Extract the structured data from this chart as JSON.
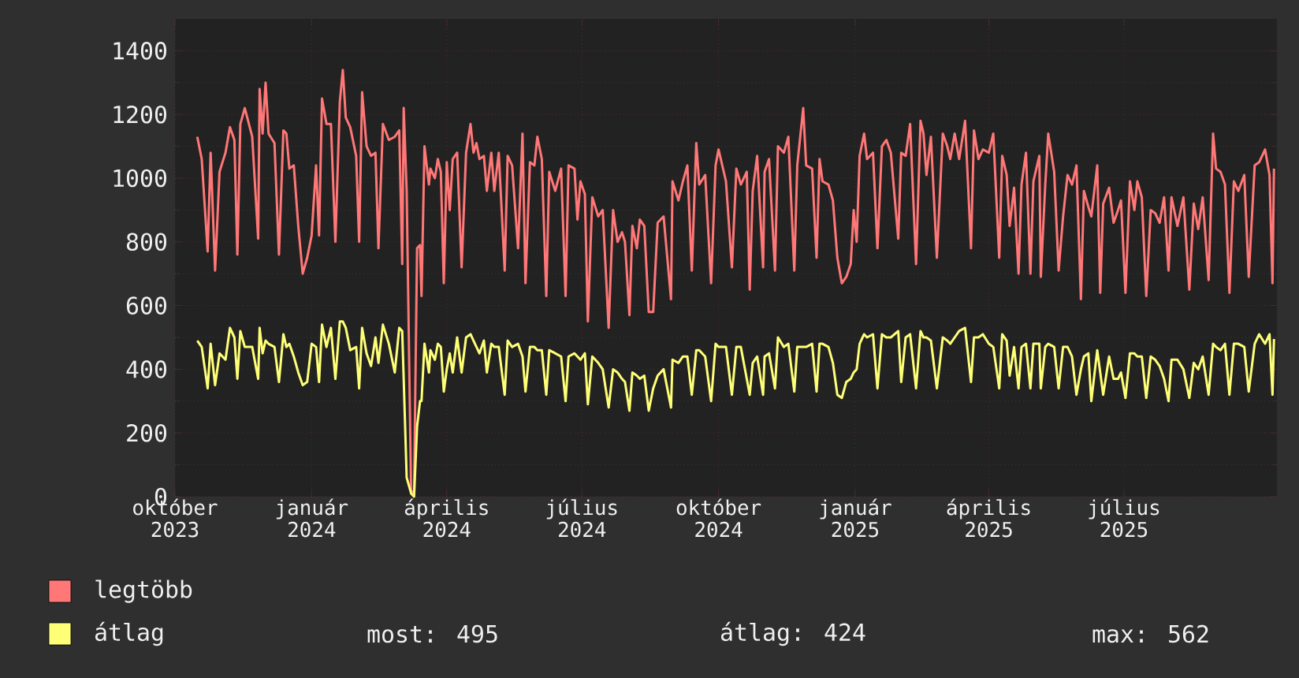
{
  "chart_data": {
    "type": "line",
    "x": [
      "2023-10-16",
      "2023-10-19",
      "2023-10-23",
      "2023-10-25",
      "2023-10-28",
      "2023-10-31",
      "2023-11-04",
      "2023-11-07",
      "2023-11-10",
      "2023-11-12",
      "2023-11-14",
      "2023-11-17",
      "2023-11-22",
      "2023-11-26",
      "2023-11-27",
      "2023-11-29",
      "2023-12-01",
      "2023-12-03",
      "2023-12-07",
      "2023-12-10",
      "2023-12-13",
      "2023-12-15",
      "2023-12-17",
      "2023-12-20",
      "2023-12-23",
      "2023-12-26",
      "2023-12-29",
      "2024-01-01",
      "2024-01-04",
      "2024-01-06",
      "2024-01-08",
      "2024-01-11",
      "2024-01-14",
      "2024-01-17",
      "2024-01-20",
      "2024-01-22",
      "2024-01-24",
      "2024-01-27",
      "2024-01-31",
      "2024-02-02",
      "2024-02-04",
      "2024-02-07",
      "2024-02-10",
      "2024-02-13",
      "2024-02-15",
      "2024-02-18",
      "2024-02-22",
      "2024-02-26",
      "2024-02-29",
      "2024-03-02",
      "2024-03-03",
      "2024-03-05",
      "2024-03-08",
      "2024-03-10",
      "2024-03-12",
      "2024-03-14",
      "2024-03-15",
      "2024-03-17",
      "2024-03-20",
      "2024-03-21",
      "2024-03-24",
      "2024-03-26",
      "2024-03-28",
      "2024-03-30",
      "2024-04-01",
      "2024-04-03",
      "2024-04-05",
      "2024-04-08",
      "2024-04-11",
      "2024-04-14",
      "2024-04-17",
      "2024-04-19",
      "2024-04-21",
      "2024-04-23",
      "2024-04-26",
      "2024-04-28",
      "2024-05-01",
      "2024-05-03",
      "2024-05-06",
      "2024-05-10",
      "2024-05-12",
      "2024-05-15",
      "2024-05-19",
      "2024-05-22",
      "2024-05-24",
      "2024-05-27",
      "2024-05-30",
      "2024-06-01",
      "2024-06-04",
      "2024-06-07",
      "2024-06-09",
      "2024-06-13",
      "2024-06-17",
      "2024-06-20",
      "2024-06-22",
      "2024-06-26",
      "2024-06-28",
      "2024-06-30",
      "2024-07-03",
      "2024-07-05",
      "2024-07-08",
      "2024-07-10",
      "2024-07-12",
      "2024-07-15",
      "2024-07-19",
      "2024-07-22",
      "2024-07-25",
      "2024-07-28",
      "2024-07-30",
      "2024-08-02",
      "2024-08-04",
      "2024-08-07",
      "2024-08-09",
      "2024-08-12",
      "2024-08-15",
      "2024-08-18",
      "2024-08-21",
      "2024-08-25",
      "2024-08-30",
      "2024-08-31",
      "2024-09-04",
      "2024-09-07",
      "2024-09-10",
      "2024-09-13",
      "2024-09-16",
      "2024-09-18",
      "2024-09-22",
      "2024-09-26",
      "2024-09-29",
      "2024-10-01",
      "2024-10-06",
      "2024-10-10",
      "2024-10-13",
      "2024-10-16",
      "2024-10-20",
      "2024-10-22",
      "2024-10-24",
      "2024-10-27",
      "2024-10-31",
      "2024-11-01",
      "2024-11-04",
      "2024-11-08",
      "2024-11-10",
      "2024-11-14",
      "2024-11-17",
      "2024-11-21",
      "2024-11-23",
      "2024-11-27",
      "2024-11-29",
      "2024-12-03",
      "2024-12-06",
      "2024-12-08",
      "2024-12-10",
      "2024-12-14",
      "2024-12-17",
      "2024-12-20",
      "2024-12-23",
      "2024-12-26",
      "2024-12-29",
      "2024-12-31",
      "2025-01-02",
      "2025-01-04",
      "2025-01-07",
      "2025-01-09",
      "2025-01-13",
      "2025-01-16",
      "2025-01-19",
      "2025-01-22",
      "2025-01-25",
      "2025-01-30",
      "2025-02-01",
      "2025-02-04",
      "2025-02-07",
      "2025-02-11",
      "2025-02-14",
      "2025-02-16",
      "2025-02-18",
      "2025-02-21",
      "2025-02-25",
      "2025-03-01",
      "2025-03-04",
      "2025-03-06",
      "2025-03-09",
      "2025-03-12",
      "2025-03-16",
      "2025-03-20",
      "2025-03-22",
      "2025-03-25",
      "2025-03-28",
      "2025-04-01",
      "2025-04-04",
      "2025-04-08",
      "2025-04-10",
      "2025-04-13",
      "2025-04-15",
      "2025-04-18",
      "2025-04-21",
      "2025-04-23",
      "2025-04-26",
      "2025-04-29",
      "2025-05-01",
      "2025-05-05",
      "2025-05-06",
      "2025-05-09",
      "2025-05-11",
      "2025-05-15",
      "2025-05-18",
      "2025-05-21",
      "2025-05-24",
      "2025-05-27",
      "2025-05-30",
      "2025-06-02",
      "2025-06-04",
      "2025-06-07",
      "2025-06-09",
      "2025-06-13",
      "2025-06-15",
      "2025-06-17",
      "2025-06-21",
      "2025-06-24",
      "2025-06-27",
      "2025-06-29",
      "2025-07-02",
      "2025-07-05",
      "2025-07-08",
      "2025-07-10",
      "2025-07-13",
      "2025-07-16",
      "2025-07-19",
      "2025-07-22",
      "2025-07-25",
      "2025-07-28",
      "2025-07-31",
      "2025-08-02",
      "2025-08-06",
      "2025-08-10",
      "2025-08-14",
      "2025-08-17",
      "2025-08-20",
      "2025-08-23",
      "2025-08-27",
      "2025-08-30",
      "2025-09-01",
      "2025-09-04",
      "2025-09-07",
      "2025-09-10",
      "2025-09-13",
      "2025-09-16",
      "2025-09-20",
      "2025-09-23",
      "2025-09-27",
      "2025-09-30",
      "2025-10-04",
      "2025-10-07",
      "2025-10-09",
      "2025-10-10"
    ],
    "series": [
      {
        "name": "legtöbb",
        "color": "#ff7777",
        "values": [
          1130,
          1060,
          770,
          1080,
          710,
          1020,
          1080,
          1160,
          1120,
          760,
          1170,
          1220,
          1130,
          810,
          1280,
          1140,
          1300,
          1140,
          1110,
          760,
          1150,
          1140,
          1030,
          1040,
          850,
          700,
          750,
          820,
          1040,
          820,
          1250,
          1170,
          1170,
          800,
          1240,
          1340,
          1190,
          1160,
          1070,
          800,
          1270,
          1100,
          1070,
          1080,
          780,
          1170,
          1120,
          1130,
          1150,
          730,
          1220,
          960,
          10,
          20,
          780,
          790,
          630,
          1100,
          980,
          1030,
          1000,
          1060,
          1020,
          670,
          1050,
          900,
          1060,
          1080,
          720,
          1080,
          1170,
          1080,
          1110,
          1060,
          1070,
          960,
          1080,
          960,
          1080,
          710,
          1070,
          1040,
          780,
          1140,
          670,
          1050,
          1040,
          1130,
          1060,
          630,
          1020,
          960,
          1030,
          630,
          1040,
          1030,
          870,
          990,
          950,
          550,
          940,
          910,
          880,
          900,
          530,
          900,
          800,
          830,
          800,
          570,
          850,
          780,
          870,
          850,
          580,
          580,
          860,
          880,
          620,
          990,
          930,
          990,
          1040,
          710,
          1110,
          980,
          1010,
          670,
          1040,
          1090,
          990,
          720,
          1030,
          980,
          1020,
          650,
          960,
          1070,
          720,
          1020,
          1060,
          710,
          1100,
          1080,
          1130,
          710,
          1040,
          1220,
          1040,
          1030,
          750,
          1060,
          990,
          980,
          930,
          750,
          670,
          690,
          730,
          900,
          800,
          1070,
          1140,
          1060,
          1080,
          780,
          1100,
          1120,
          1080,
          810,
          1080,
          1070,
          1170,
          730,
          1180,
          1140,
          1010,
          1130,
          750,
          1140,
          1100,
          1060,
          1140,
          1060,
          1180,
          780,
          1150,
          1060,
          1090,
          1080,
          1140,
          750,
          1070,
          1010,
          850,
          970,
          700,
          980,
          1080,
          700,
          990,
          1070,
          690,
          980,
          1140,
          1020,
          710,
          880,
          1010,
          980,
          1040,
          620,
          960,
          910,
          880,
          1040,
          640,
          920,
          970,
          860,
          900,
          930,
          640,
          990,
          900,
          990,
          940,
          630,
          900,
          890,
          860,
          940,
          710,
          940,
          850,
          940,
          650,
          920,
          840,
          940,
          680,
          1140,
          1030,
          1020,
          980,
          640,
          990,
          960,
          1010,
          690,
          1040,
          1050,
          1090,
          1010,
          670,
          1030
        ]
      },
      {
        "name": "átlag",
        "color": "#ffff77",
        "values": [
          490,
          470,
          340,
          480,
          350,
          450,
          430,
          530,
          500,
          370,
          520,
          470,
          470,
          370,
          530,
          450,
          490,
          480,
          470,
          360,
          510,
          470,
          480,
          440,
          390,
          350,
          360,
          480,
          470,
          360,
          540,
          470,
          530,
          370,
          550,
          550,
          530,
          460,
          470,
          340,
          530,
          450,
          410,
          500,
          420,
          540,
          480,
          390,
          530,
          520,
          370,
          60,
          10,
          0,
          220,
          300,
          300,
          480,
          390,
          460,
          430,
          480,
          470,
          330,
          400,
          450,
          390,
          500,
          390,
          500,
          510,
          490,
          470,
          450,
          490,
          390,
          480,
          470,
          470,
          320,
          490,
          470,
          480,
          440,
          330,
          470,
          470,
          460,
          460,
          320,
          460,
          450,
          440,
          300,
          440,
          450,
          440,
          430,
          450,
          290,
          440,
          430,
          420,
          400,
          280,
          400,
          390,
          370,
          360,
          270,
          390,
          380,
          370,
          380,
          270,
          340,
          380,
          400,
          280,
          430,
          420,
          440,
          440,
          320,
          460,
          460,
          440,
          300,
          480,
          470,
          470,
          320,
          470,
          470,
          370,
          320,
          420,
          440,
          320,
          440,
          450,
          340,
          500,
          470,
          480,
          330,
          470,
          470,
          470,
          480,
          330,
          480,
          480,
          470,
          420,
          320,
          310,
          360,
          370,
          390,
          400,
          480,
          510,
          500,
          510,
          340,
          510,
          500,
          500,
          520,
          360,
          500,
          510,
          340,
          520,
          500,
          500,
          490,
          340,
          500,
          490,
          480,
          500,
          520,
          530,
          360,
          500,
          500,
          510,
          480,
          470,
          340,
          510,
          490,
          380,
          470,
          340,
          470,
          480,
          340,
          480,
          480,
          340,
          470,
          480,
          470,
          340,
          470,
          470,
          440,
          320,
          400,
          440,
          450,
          300,
          460,
          390,
          320,
          440,
          370,
          370,
          390,
          310,
          450,
          450,
          440,
          440,
          310,
          440,
          430,
          410,
          370,
          300,
          430,
          430,
          400,
          310,
          420,
          400,
          440,
          320,
          480,
          470,
          460,
          480,
          320,
          480,
          480,
          470,
          330,
          480,
          510,
          480,
          510,
          320,
          495
        ]
      }
    ],
    "xlim": [
      "2023-10-01",
      "2025-10-12"
    ],
    "xticks": [
      {
        "value": "2023-10-01",
        "label": "október 2023"
      },
      {
        "value": "2024-01-01",
        "label": "január 2024"
      },
      {
        "value": "2024-04-01",
        "label": "április 2024"
      },
      {
        "value": "2024-07-01",
        "label": "július 2024"
      },
      {
        "value": "2024-10-01",
        "label": "október 2024"
      },
      {
        "value": "2025-01-01",
        "label": "január 2025"
      },
      {
        "value": "2025-04-01",
        "label": "április 2025"
      },
      {
        "value": "2025-07-01",
        "label": "július 2025"
      }
    ],
    "ylim": [
      0,
      1500
    ],
    "yticks": [
      0,
      200,
      400,
      600,
      800,
      1000,
      1200,
      1400
    ],
    "grid": true,
    "legend": "bottom",
    "annotations": [
      "most: 495",
      "átlag: 424",
      "max: 562"
    ]
  }
}
